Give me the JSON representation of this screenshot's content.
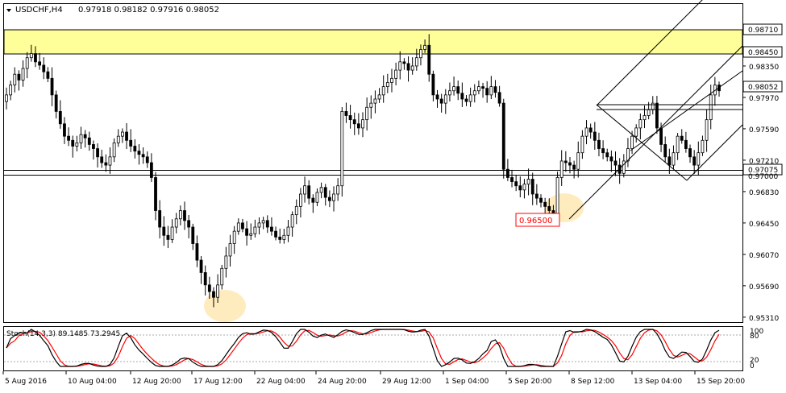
{
  "header": {
    "symbol": "USDCHF,H4",
    "ohlc": "0.97918 0.98182 0.97916 0.98052"
  },
  "price_axis": {
    "ticks": [
      "0.98350",
      "0.97970",
      "0.97590",
      "0.97210",
      "0.96830",
      "0.96450",
      "0.96070",
      "0.95690",
      "0.95310"
    ],
    "ylim": [
      0.9525,
      0.991
    ],
    "current_price": "0.98052",
    "zone_top_label": "0.98710",
    "zone_bottom_label": "0.98450",
    "support_label": "0.97075",
    "support_hidden_label": "0.97000"
  },
  "annotation": {
    "label": "0.96500"
  },
  "indicator": {
    "title": "Stoch(14,3,3) 89.1485 73.2945",
    "levels": [
      "100",
      "80",
      "20",
      "0"
    ]
  },
  "time_axis": {
    "labels": [
      "5 Aug 2016",
      "10 Aug 04:00",
      "12 Aug 20:00",
      "17 Aug 12:00",
      "22 Aug 04:00",
      "24 Aug 20:00",
      "29 Aug 12:00",
      "1 Sep 04:00",
      "5 Sep 20:00",
      "8 Sep 12:00",
      "13 Sep 04:00",
      "15 Sep 20:00"
    ]
  },
  "colors": {
    "zone": "#ffff99",
    "candle": "#000000",
    "stoch_main": "#000000",
    "stoch_signal": "#ff0000",
    "label_box": "#ff0000",
    "highlight": "#ffe9b3"
  },
  "chart_data": {
    "type": "candlestick",
    "title": "USDCHF,H4",
    "ylim": [
      0.9525,
      0.991
    ],
    "closes": [
      0.98,
      0.9812,
      0.9825,
      0.9818,
      0.9832,
      0.9845,
      0.985,
      0.984,
      0.9836,
      0.9828,
      0.982,
      0.98,
      0.978,
      0.9765,
      0.975,
      0.9745,
      0.9738,
      0.9742,
      0.9752,
      0.9748,
      0.974,
      0.9735,
      0.9725,
      0.9718,
      0.9715,
      0.9725,
      0.9742,
      0.975,
      0.9755,
      0.9745,
      0.9738,
      0.9732,
      0.9728,
      0.9725,
      0.9718,
      0.97,
      0.966,
      0.964,
      0.963,
      0.9625,
      0.964,
      0.965,
      0.966,
      0.9648,
      0.964,
      0.962,
      0.96,
      0.9585,
      0.957,
      0.9562,
      0.9555,
      0.957,
      0.959,
      0.9605,
      0.962,
      0.9635,
      0.9645,
      0.9638,
      0.963,
      0.9632,
      0.964,
      0.9645,
      0.9648,
      0.964,
      0.9635,
      0.9628,
      0.9625,
      0.963,
      0.964,
      0.9655,
      0.9665,
      0.968,
      0.969,
      0.9675,
      0.967,
      0.9682,
      0.9688,
      0.9676,
      0.9672,
      0.968,
      0.969,
      0.978,
      0.9775,
      0.977,
      0.9765,
      0.976,
      0.977,
      0.9785,
      0.979,
      0.9795,
      0.98,
      0.981,
      0.9815,
      0.982,
      0.983,
      0.984,
      0.9838,
      0.983,
      0.9835,
      0.9845,
      0.9855,
      0.986,
      0.9825,
      0.98,
      0.9795,
      0.979,
      0.98,
      0.9805,
      0.981,
      0.9802,
      0.9795,
      0.9792,
      0.98,
      0.9805,
      0.981,
      0.9808,
      0.98,
      0.981,
      0.9803,
      0.979,
      0.971,
      0.97,
      0.9695,
      0.969,
      0.9685,
      0.9692,
      0.9698,
      0.968,
      0.9675,
      0.967,
      0.9665,
      0.966,
      0.965,
      0.97,
      0.972,
      0.9718,
      0.9715,
      0.971,
      0.973,
      0.975,
      0.976,
      0.9755,
      0.9745,
      0.9735,
      0.973,
      0.9725,
      0.972,
      0.9715,
      0.9705,
      0.972,
      0.9735,
      0.975,
      0.976,
      0.977,
      0.9775,
      0.9782,
      0.979,
      0.976,
      0.974,
      0.9725,
      0.9715,
      0.973,
      0.975,
      0.9745,
      0.9735,
      0.9725,
      0.9715,
      0.973,
      0.9745,
      0.977,
      0.98,
      0.9812,
      0.9805
    ]
  }
}
